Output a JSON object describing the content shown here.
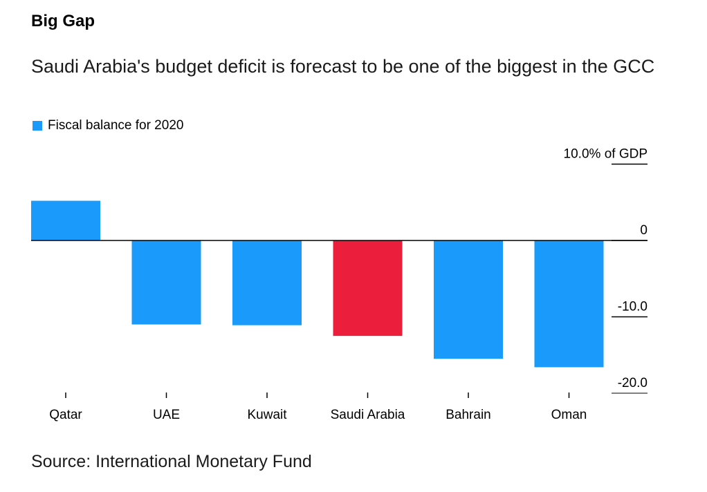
{
  "header": {
    "title": "Big Gap",
    "subtitle": "Saudi Arabia's budget deficit is forecast to be one of the biggest in the GCC"
  },
  "legend": {
    "label": "Fiscal balance for 2020",
    "color": "#1a9bfc"
  },
  "footer": {
    "source": "Source: International Monetary Fund"
  },
  "chart_data": {
    "type": "bar",
    "categories": [
      "Qatar",
      "UAE",
      "Kuwait",
      "Saudi Arabia",
      "Bahrain",
      "Oman"
    ],
    "series": [
      {
        "name": "Fiscal balance for 2020",
        "values": [
          5.2,
          -11.0,
          -11.1,
          -12.5,
          -15.5,
          -16.6
        ]
      }
    ],
    "bar_colors": [
      "#1a9bfc",
      "#1a9bfc",
      "#1a9bfc",
      "#eb1f3c",
      "#1a9bfc",
      "#1a9bfc"
    ],
    "highlight_color": "#eb1f3c",
    "ylim": [
      -20,
      10
    ],
    "yticks": [
      10,
      0,
      -10,
      -20
    ],
    "ytick_labels": [
      "10.0% of GDP",
      "0",
      "-10.0",
      "-20.0"
    ],
    "y_axis_position": "right",
    "grid": false,
    "legend_position": "top-left"
  }
}
